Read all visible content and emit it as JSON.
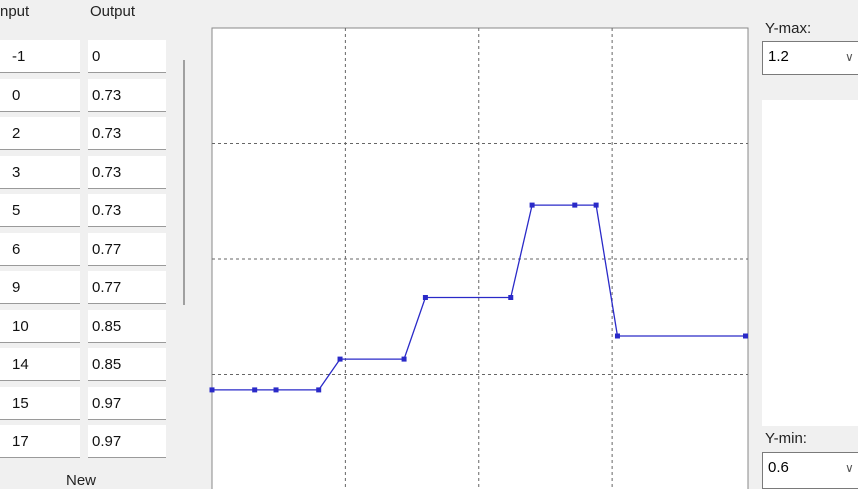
{
  "table": {
    "headers": [
      "nput",
      "Output"
    ],
    "rows": [
      [
        "-1",
        "0"
      ],
      [
        "0",
        "0.73"
      ],
      [
        "2",
        "0.73"
      ],
      [
        "3",
        "0.73"
      ],
      [
        "5",
        "0.73"
      ],
      [
        "6",
        "0.77"
      ],
      [
        "9",
        "0.77"
      ],
      [
        "10",
        "0.85"
      ],
      [
        "14",
        "0.85"
      ],
      [
        "15",
        "0.97"
      ],
      [
        "17",
        "0.97"
      ]
    ]
  },
  "new_button": "New",
  "controls": {
    "y_max_label": "Y-max:",
    "y_max": 1.2,
    "y_min_label": "Y-min:",
    "y_min": 0.6
  },
  "plot": {
    "color": "#2a2ac8",
    "x": [
      0,
      2,
      3,
      5,
      6,
      9,
      10,
      14,
      15,
      17,
      18,
      19,
      25
    ],
    "values": [
      0.73,
      0.73,
      0.73,
      0.73,
      0.77,
      0.77,
      0.85,
      0.85,
      0.97,
      0.97,
      0.97,
      0.8,
      0.8
    ],
    "xlim": [
      0,
      25
    ],
    "xticks": [
      6.25,
      12.5,
      18.75
    ],
    "yticks": [
      0.75,
      0.9,
      1.05
    ]
  }
}
